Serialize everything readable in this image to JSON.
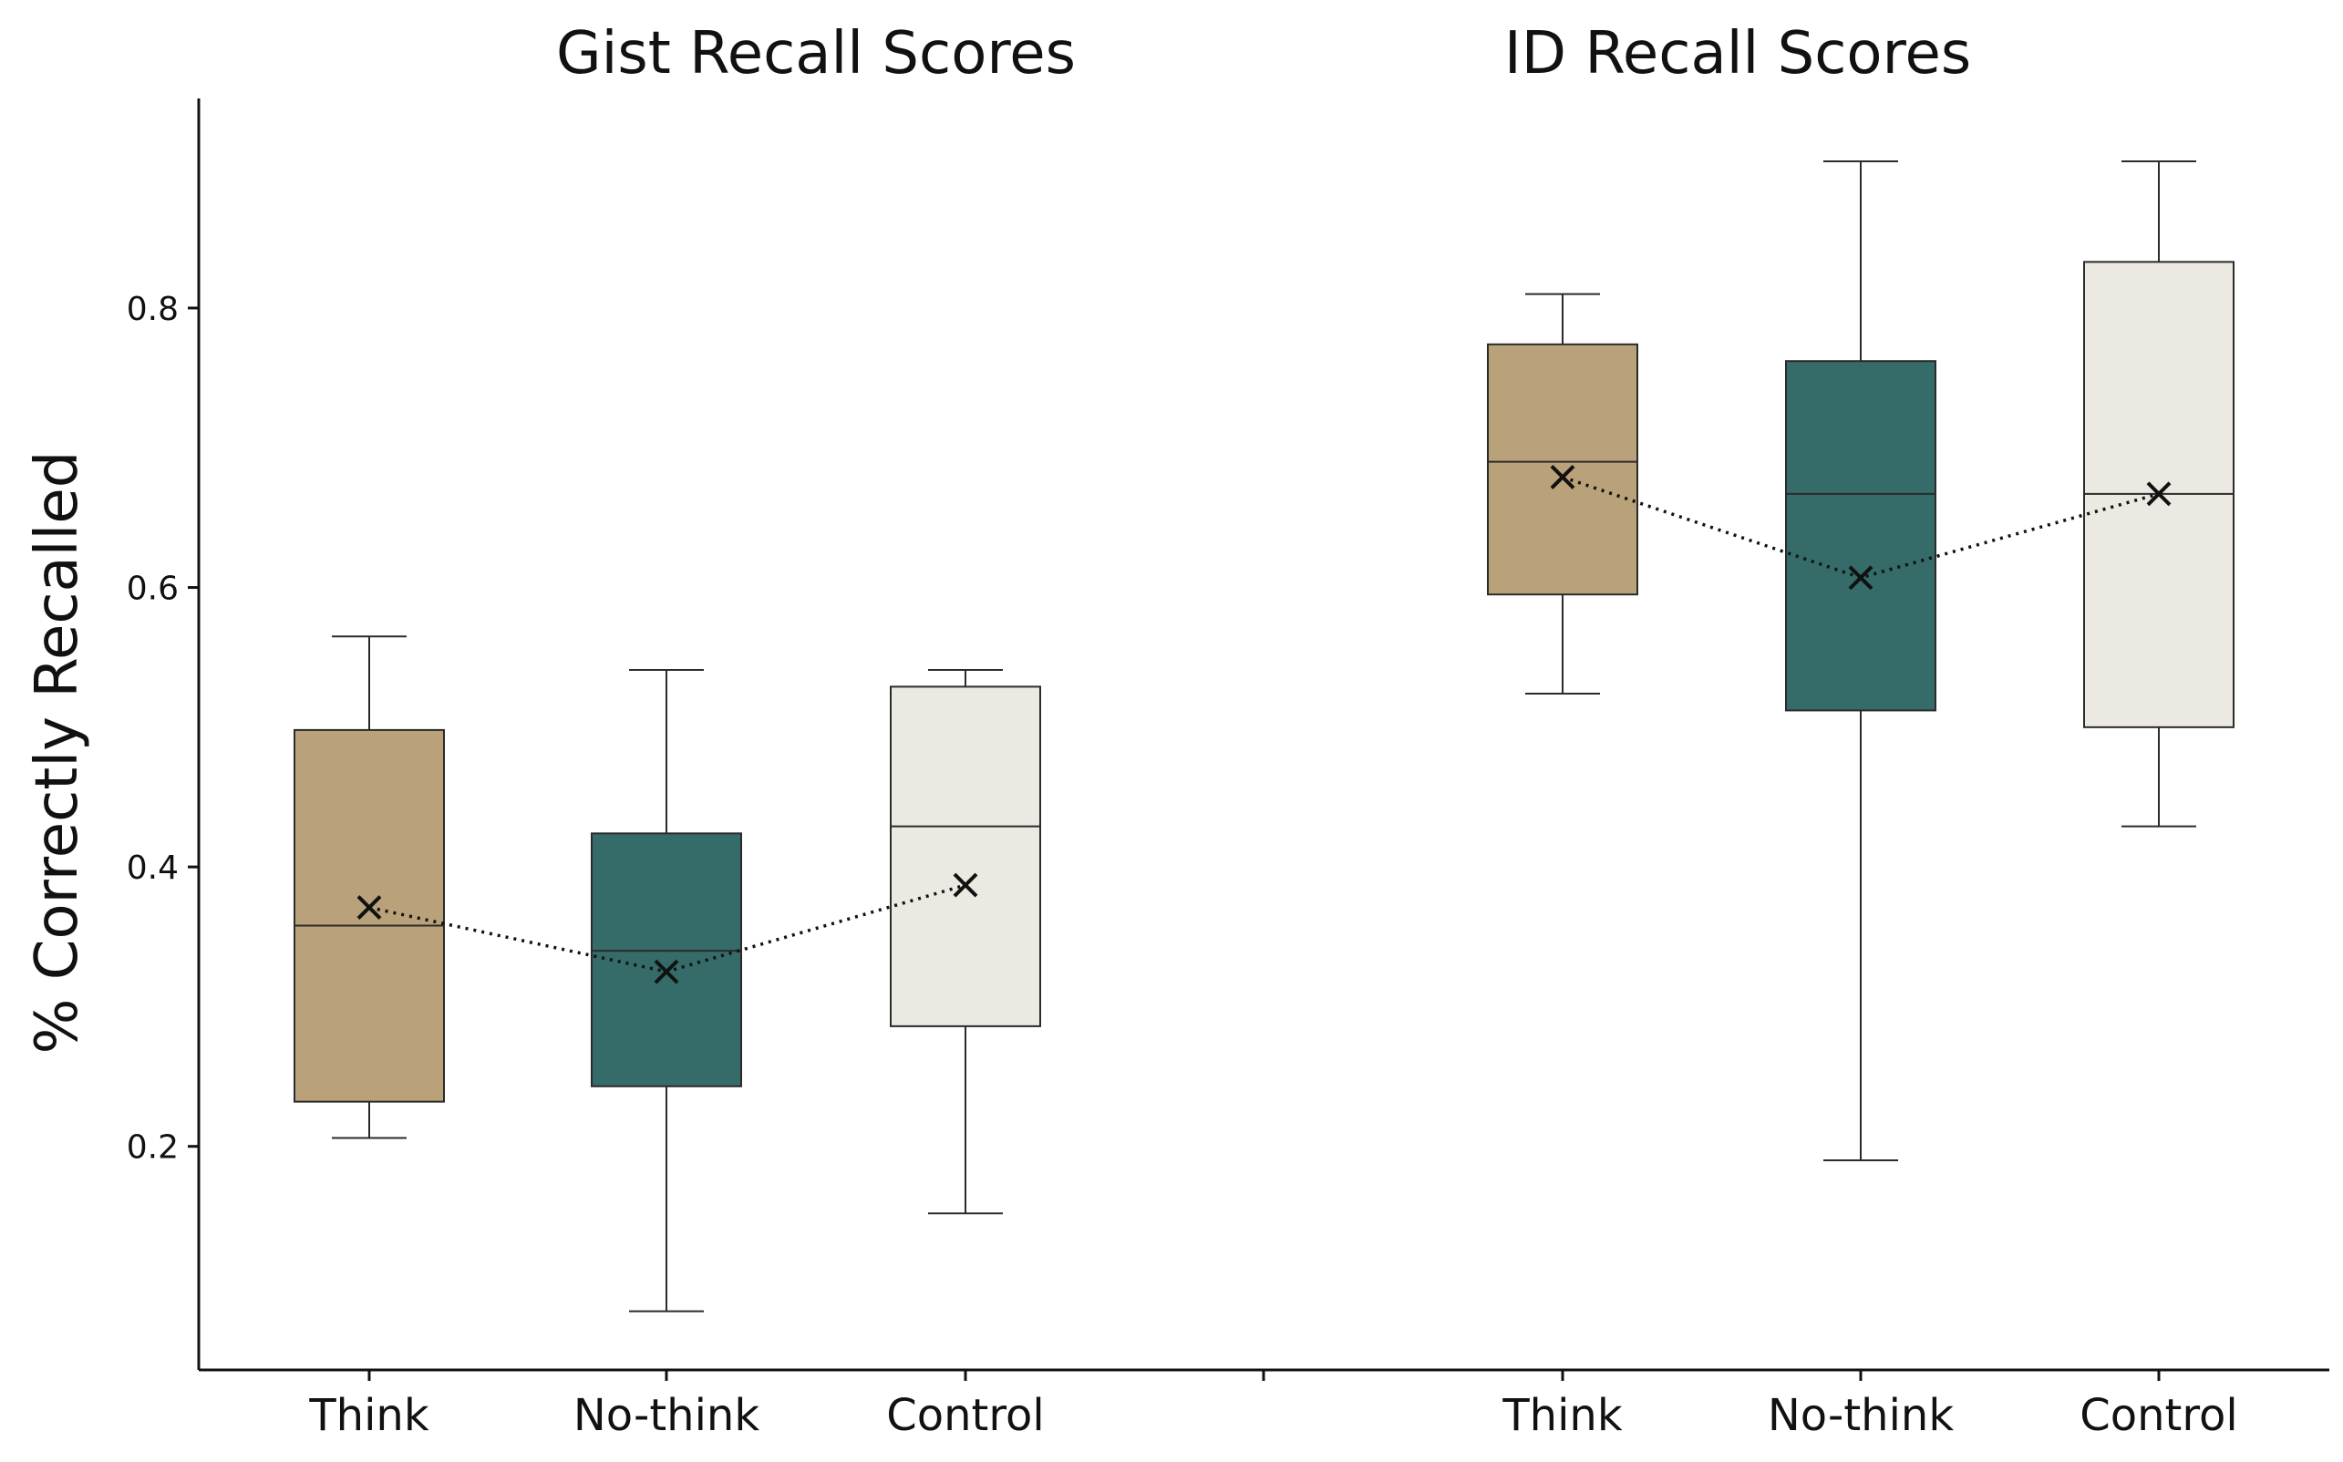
{
  "chart_data": {
    "type": "box",
    "ylabel": "% Correctly Recalled",
    "yticks": [
      0.2,
      0.4,
      0.6,
      0.8
    ],
    "ylim": [
      0.04,
      0.95
    ],
    "grid": false,
    "colors": {
      "Think": "#b9a27a",
      "No-think": "#356b68",
      "Control": "#ebe9e2"
    },
    "panels": [
      {
        "title": "Gist Recall Scores",
        "categories": [
          "Think",
          "No-think",
          "Control"
        ],
        "boxes": [
          {
            "category": "Think",
            "whisker_low": 0.206,
            "q1": 0.232,
            "median": 0.358,
            "q3": 0.498,
            "whisker_high": 0.565,
            "mean": 0.371
          },
          {
            "category": "No-think",
            "whisker_low": 0.082,
            "q1": 0.243,
            "median": 0.34,
            "q3": 0.424,
            "whisker_high": 0.541,
            "mean": 0.325
          },
          {
            "category": "Control",
            "whisker_low": 0.152,
            "q1": 0.286,
            "median": 0.429,
            "q3": 0.529,
            "whisker_high": 0.541,
            "mean": 0.387
          }
        ]
      },
      {
        "title": "ID Recall Scores",
        "categories": [
          "Think",
          "No-think",
          "Control"
        ],
        "boxes": [
          {
            "category": "Think",
            "whisker_low": 0.524,
            "q1": 0.595,
            "median": 0.69,
            "q3": 0.774,
            "whisker_high": 0.81,
            "mean": 0.679
          },
          {
            "category": "No-think",
            "whisker_low": 0.19,
            "q1": 0.512,
            "median": 0.667,
            "q3": 0.762,
            "whisker_high": 0.905,
            "mean": 0.607
          },
          {
            "category": "Control",
            "whisker_low": 0.429,
            "q1": 0.5,
            "median": 0.667,
            "q3": 0.833,
            "whisker_high": 0.905,
            "mean": 0.667
          }
        ]
      }
    ]
  }
}
